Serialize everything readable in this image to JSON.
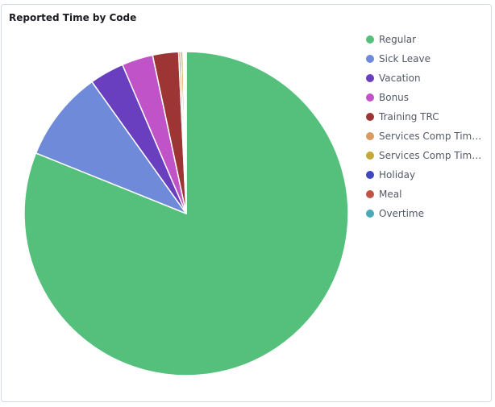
{
  "panel": {
    "title": "Reported Time by Code"
  },
  "colors": {
    "border": "#d3dae6",
    "background": "#ffffff",
    "slice_stroke": "#ffffff"
  },
  "chart_data": {
    "type": "pie",
    "title": "Reported Time by Code",
    "legend_position": "right",
    "slices": [
      {
        "label": "Regular",
        "value": 75.5,
        "color": "#54c07b"
      },
      {
        "label": "Sick Leave",
        "value": 8.4,
        "color": "#6e8ad9"
      },
      {
        "label": "Vacation",
        "value": 3.2,
        "color": "#6a3fbf"
      },
      {
        "label": "Bonus",
        "value": 2.9,
        "color": "#c053c7"
      },
      {
        "label": "Training TRC",
        "value": 2.4,
        "color": "#9e3535"
      },
      {
        "label": "Services Comp Time...",
        "value": 0.2,
        "color": "#da9b60"
      },
      {
        "label": "Services Comp Time...",
        "value": 0.2,
        "color": "#c4a83a"
      },
      {
        "label": "Holiday",
        "value": 0.1,
        "color": "#3f47bd"
      },
      {
        "label": "Meal",
        "value": 0.1,
        "color": "#bf5445"
      },
      {
        "label": "Overtime",
        "value": 0.1,
        "color": "#49a9b7"
      }
    ]
  }
}
